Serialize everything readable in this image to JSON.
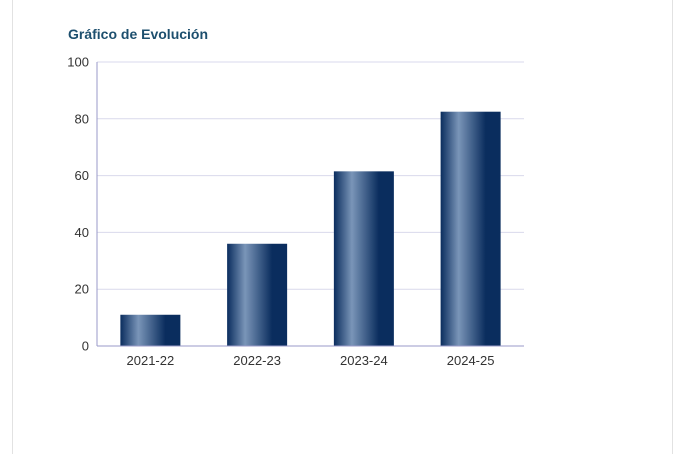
{
  "chart_data": {
    "type": "bar",
    "title": "Gráfico de Evolución",
    "categories": [
      "2021-22",
      "2022-23",
      "2023-24",
      "2024-25"
    ],
    "values": [
      11,
      36,
      61.5,
      82.5
    ],
    "xlabel": "",
    "ylabel": "",
    "ylim": [
      0,
      100
    ],
    "yticks": [
      "0",
      "20",
      "40",
      "60",
      "80",
      "100"
    ],
    "grid": true,
    "legend": "none",
    "colors": {
      "bar_dark": "#0a2d5e",
      "bar_light": "#7a95b8",
      "grid": "#d9d9ec",
      "axis": "#9a9ac8",
      "title": "#1d4f6e"
    }
  }
}
